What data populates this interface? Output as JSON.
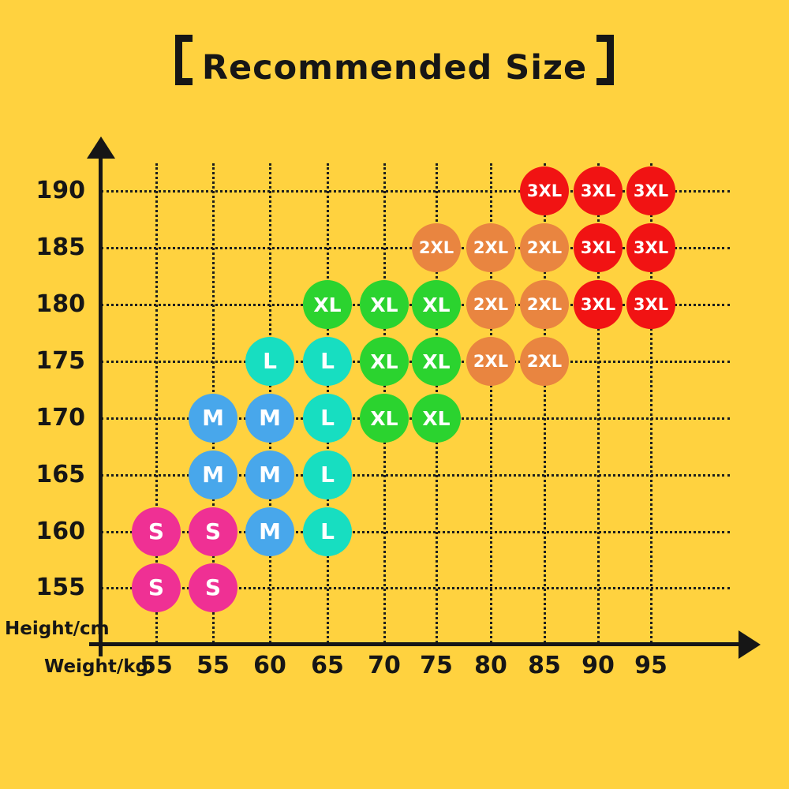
{
  "page": {
    "background": "#FFD23F",
    "ink": "#161616",
    "grid_color": "#1d1d1d"
  },
  "title": {
    "full": "【Recommended Size】",
    "text": "Recommended Size",
    "bracket_left": "【",
    "bracket_right": "】"
  },
  "axes": {
    "y_label": "Height/cm",
    "x_label": "Weight/kg"
  },
  "chart_data": {
    "type": "scatter",
    "title": "【Recommended Size】",
    "xlabel": "Weight/kg",
    "ylabel": "Height/cm",
    "x_ticks": [
      "55",
      "55",
      "60",
      "65",
      "70",
      "75",
      "80",
      "85",
      "90",
      "95"
    ],
    "y_ticks": [
      "190",
      "185",
      "180",
      "175",
      "170",
      "165",
      "160",
      "155"
    ],
    "grid": "dotted",
    "legend_position": "none",
    "series": [
      {
        "label": "S",
        "color": "#EF3094",
        "points": [
          [
            0,
            "160"
          ],
          [
            1,
            "160"
          ],
          [
            0,
            "155"
          ],
          [
            1,
            "155"
          ]
        ]
      },
      {
        "label": "M",
        "color": "#48A7EB",
        "points": [
          [
            1,
            "170"
          ],
          [
            2,
            "170"
          ],
          [
            1,
            "165"
          ],
          [
            2,
            "165"
          ],
          [
            2,
            "160"
          ]
        ]
      },
      {
        "label": "L",
        "color": "#17DEC1",
        "points": [
          [
            2,
            "175"
          ],
          [
            3,
            "175"
          ],
          [
            3,
            "170"
          ],
          [
            3,
            "165"
          ],
          [
            3,
            "160"
          ]
        ]
      },
      {
        "label": "XL",
        "color": "#2BD32F",
        "points": [
          [
            3,
            "180"
          ],
          [
            4,
            "180"
          ],
          [
            5,
            "180"
          ],
          [
            4,
            "175"
          ],
          [
            5,
            "175"
          ],
          [
            4,
            "170"
          ],
          [
            5,
            "170"
          ]
        ]
      },
      {
        "label": "2XL",
        "color": "#E98540",
        "points": [
          [
            5,
            "185"
          ],
          [
            6,
            "185"
          ],
          [
            7,
            "185"
          ],
          [
            6,
            "180"
          ],
          [
            7,
            "180"
          ],
          [
            6,
            "175"
          ],
          [
            7,
            "175"
          ]
        ]
      },
      {
        "label": "3XL",
        "color": "#F11313",
        "points": [
          [
            7,
            "190"
          ],
          [
            8,
            "190"
          ],
          [
            9,
            "190"
          ],
          [
            8,
            "185"
          ],
          [
            9,
            "185"
          ],
          [
            8,
            "180"
          ],
          [
            9,
            "180"
          ]
        ]
      }
    ]
  }
}
